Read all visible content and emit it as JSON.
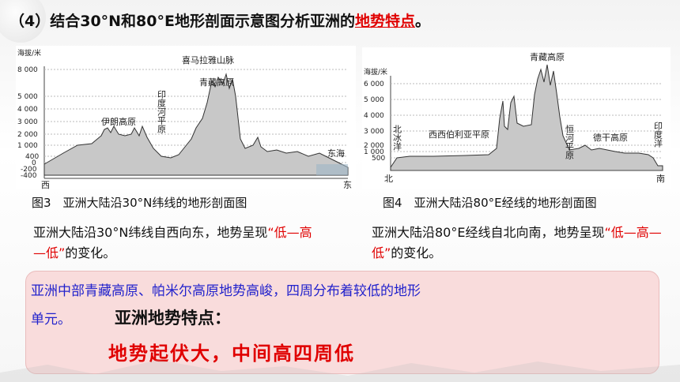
{
  "title": {
    "prefix": "（4）结合30°N和80°E地形剖面示意图分析亚洲的",
    "highlight": "地势特点",
    "suffix": "。"
  },
  "figure3": {
    "ylabel": "海拔/米",
    "y_ticks": [
      "8 000",
      "5 000",
      "4 000",
      "3 000",
      "2 000",
      "1 000",
      "400",
      "0",
      "-200",
      "-400"
    ],
    "labels": [
      "喜马拉雅山脉",
      "青藏高原",
      "伊朗高原",
      "印度河平原",
      "东海"
    ],
    "left_end": "西",
    "right_end": "东",
    "caption": "图3　亚洲大陆沿30°N纬线的地形剖面图"
  },
  "figure4": {
    "ylabel": "海拔/米",
    "y_ticks": [
      "6 000",
      "5 000",
      "4 000",
      "3 000",
      "2 000",
      "1 000",
      "500"
    ],
    "labels": [
      "青藏高原",
      "北冰洋",
      "西西伯利亚平原",
      "恒河平原",
      "德干高原",
      "印度洋"
    ],
    "left_end": "北",
    "right_end": "南",
    "caption": "图4　亚洲大陆沿80°E经线的地形剖面图"
  },
  "desc_left": {
    "text": "亚洲大陆沿30°N纬线自西向东，地势呈现",
    "quote": "“低—高—低”",
    "suffix": "的变化。"
  },
  "desc_right": {
    "text": "亚洲大陆沿80°E经线自北向南，地势呈现",
    "quote": "“低—高—低”",
    "suffix": "的变化。"
  },
  "summary": {
    "line1": "亚洲中部青藏高原、帕米尔高原地势高峻，四周分布着较低的地形",
    "line2": "单元。",
    "heading": "亚洲地势特点：",
    "conclusion": "地势起伏大，中间高四周低"
  },
  "colors": {
    "accent_red": "#e00000",
    "summary_blue": "#2222cc",
    "box_bg": "#f9dcdc"
  }
}
